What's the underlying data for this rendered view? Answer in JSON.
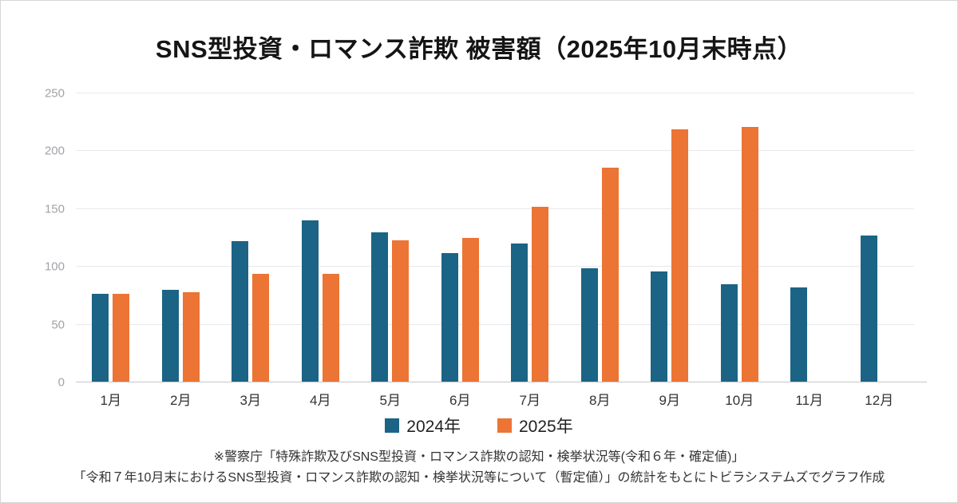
{
  "title": "SNS型投資・ロマンス詐欺 被害額（2025年10月末時点）",
  "legend": {
    "items": [
      {
        "label": "2024年",
        "color": "#1b6485"
      },
      {
        "label": "2025年",
        "color": "#ec7434"
      }
    ]
  },
  "footer": {
    "line1": "※警察庁「特殊詐欺及びSNS型投資・ロマンス詐欺の認知・検挙状況等(令和６年・確定値)」",
    "line2": "「令和７年10月末におけるSNS型投資・ロマンス詐欺の認知・検挙状況等について（暫定値）」の統計をもとにトビラシステムズでグラフ作成"
  },
  "chart_data": {
    "type": "bar",
    "title": "SNS型投資・ロマンス詐欺 被害額（2025年10月末時点）",
    "categories": [
      "1月",
      "2月",
      "3月",
      "4月",
      "5月",
      "6月",
      "7月",
      "8月",
      "9月",
      "10月",
      "11月",
      "12月"
    ],
    "series": [
      {
        "name": "2024年",
        "color": "#1b6485",
        "values": [
          77,
          80,
          122,
          140,
          130,
          112,
          120,
          99,
          96,
          85,
          82,
          127
        ]
      },
      {
        "name": "2025年",
        "color": "#ec7434",
        "values": [
          77,
          78,
          94,
          94,
          123,
          125,
          152,
          186,
          219,
          221,
          null,
          null
        ]
      }
    ],
    "xlabel": "",
    "ylabel": "",
    "ylim": [
      0,
      250
    ],
    "yticks": [
      0,
      50,
      100,
      150,
      200,
      250
    ],
    "grid": true,
    "legend_position": "bottom"
  }
}
